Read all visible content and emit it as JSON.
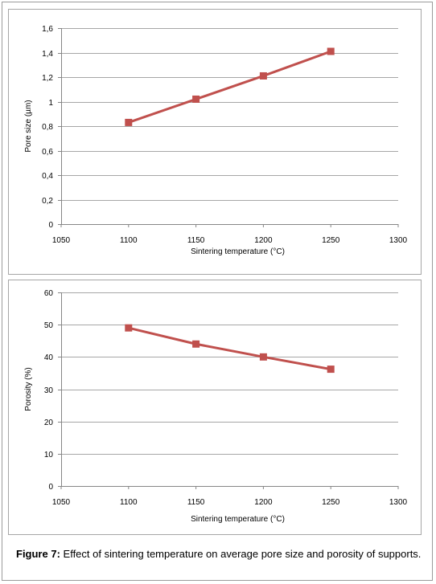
{
  "caption": {
    "label": "Figure 7:",
    "text": " Effect of sintering temperature on average pore size and porosity of supports."
  },
  "colors": {
    "series": "#c0504d",
    "grid": "#a6a6a6",
    "axis": "#868686"
  },
  "chart_data": [
    {
      "type": "line",
      "title": "",
      "xlabel": "Sintering temperature (°C)",
      "ylabel": "Pore size (µm)",
      "xlim": [
        1050,
        1300
      ],
      "ylim": [
        0,
        1.6
      ],
      "xticks": [
        "1050",
        "1100",
        "1150",
        "1200",
        "1250",
        "1300"
      ],
      "yticks": [
        "0",
        "0,2",
        "0,4",
        "0,6",
        "0,8",
        "1",
        "1,2",
        "1,4",
        "1,6"
      ],
      "grid": true,
      "marker": "square",
      "series": [
        {
          "x": [
            1100,
            1150,
            1200,
            1250
          ],
          "values": [
            0.83,
            1.02,
            1.21,
            1.41
          ]
        }
      ]
    },
    {
      "type": "line",
      "title": "",
      "xlabel": "Sintering temperature (°C)",
      "ylabel": "Porosity (%)",
      "xlim": [
        1050,
        1300
      ],
      "ylim": [
        0,
        60
      ],
      "xticks": [
        "1050",
        "1100",
        "1150",
        "1200",
        "1250",
        "1300"
      ],
      "yticks": [
        "0",
        "10",
        "20",
        "30",
        "40",
        "50",
        "60"
      ],
      "grid": true,
      "marker": "square",
      "series": [
        {
          "x": [
            1100,
            1150,
            1200,
            1250
          ],
          "values": [
            49,
            44,
            40,
            36.2
          ]
        }
      ]
    }
  ]
}
